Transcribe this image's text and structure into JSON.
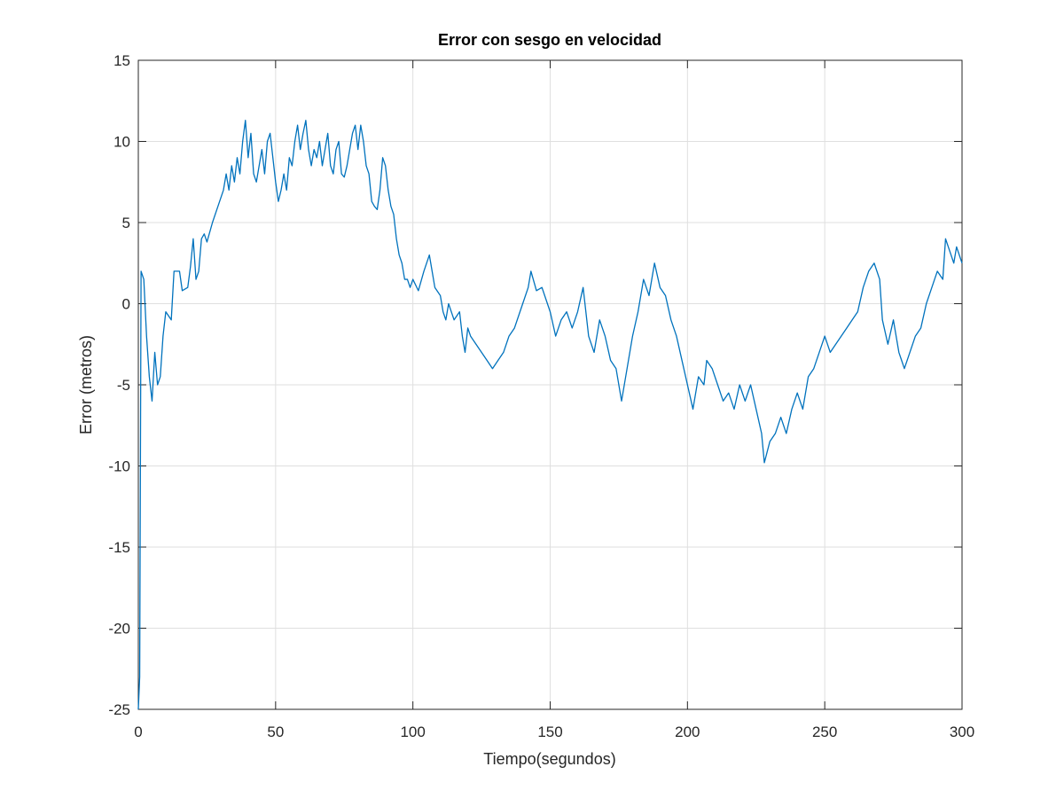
{
  "chart_data": {
    "type": "line",
    "title": "Error con sesgo en velocidad",
    "x_label": "Tiempo(segundos)",
    "y_label": "Error (metros)",
    "x": [
      0,
      0.5,
      1,
      2,
      3,
      4,
      5,
      6,
      7,
      8,
      9,
      10,
      12,
      13,
      15,
      16,
      18,
      19,
      20,
      21,
      22,
      23,
      24,
      25,
      27,
      29,
      31,
      32,
      33,
      34,
      35,
      36,
      37,
      38,
      39,
      40,
      41,
      42,
      43,
      44,
      45,
      46,
      47,
      48,
      49,
      50,
      51,
      52,
      53,
      54,
      55,
      56,
      57,
      58,
      59,
      60,
      61,
      62,
      63,
      64,
      65,
      66,
      67,
      68,
      69,
      70,
      71,
      72,
      73,
      74,
      75,
      76,
      77,
      78,
      79,
      80,
      81,
      82,
      83,
      84,
      85,
      86,
      87,
      88,
      89,
      90,
      91,
      92,
      93,
      94,
      95,
      96,
      97,
      98,
      99,
      100,
      102,
      104,
      106,
      107,
      108,
      110,
      111,
      112,
      113,
      115,
      117,
      118,
      119,
      120,
      121,
      123,
      125,
      127,
      129,
      131,
      133,
      135,
      137,
      140,
      142,
      143,
      145,
      147,
      149,
      150,
      152,
      154,
      156,
      158,
      160,
      162,
      164,
      166,
      168,
      170,
      172,
      174,
      176,
      178,
      180,
      182,
      184,
      186,
      188,
      190,
      192,
      194,
      196,
      198,
      200,
      202,
      204,
      206,
      207,
      209,
      211,
      213,
      215,
      217,
      219,
      221,
      223,
      225,
      227,
      228,
      230,
      232,
      234,
      236,
      238,
      240,
      242,
      244,
      246,
      248,
      250,
      252,
      254,
      256,
      258,
      260,
      262,
      264,
      266,
      268,
      270,
      271,
      273,
      275,
      277,
      279,
      281,
      283,
      285,
      287,
      289,
      291,
      293,
      294,
      296,
      297,
      298,
      300
    ],
    "series": [
      {
        "name": "Error",
        "color": "#0072bd",
        "values": [
          -25,
          -23,
          2,
          1.5,
          -2,
          -4.5,
          -6,
          -3,
          -5,
          -4.5,
          -2,
          -0.5,
          -1,
          2,
          2,
          0.8,
          1,
          2.3,
          4,
          1.5,
          2,
          4,
          4.3,
          3.8,
          5,
          6,
          7,
          8,
          7,
          8.5,
          7.5,
          9,
          8,
          10,
          11.3,
          9,
          10.5,
          8,
          7.5,
          8.5,
          9.5,
          8,
          10,
          10.5,
          9,
          7.5,
          6.3,
          7,
          8,
          7,
          9,
          8.5,
          10,
          11,
          9.5,
          10.5,
          11.3,
          9.5,
          8.5,
          9.5,
          9,
          10,
          8.5,
          9.5,
          10.5,
          8.5,
          8,
          9.5,
          10,
          8,
          7.8,
          8.5,
          9.5,
          10.5,
          11,
          9.5,
          11,
          10,
          8.5,
          8,
          6.3,
          6,
          5.8,
          7,
          9,
          8.5,
          7,
          6,
          5.5,
          4,
          3,
          2.5,
          1.5,
          1.5,
          1,
          1.5,
          0.8,
          2,
          3,
          2,
          1,
          0.5,
          -0.5,
          -1,
          0,
          -1,
          -0.5,
          -2,
          -3,
          -1.5,
          -2,
          -2.5,
          -3,
          -3.5,
          -4,
          -3.5,
          -3,
          -2,
          -1.5,
          0,
          1,
          2,
          0.8,
          1,
          0,
          -0.5,
          -2,
          -1,
          -0.5,
          -1.5,
          -0.5,
          1,
          -2,
          -3,
          -1,
          -2,
          -3.5,
          -4,
          -6,
          -4,
          -2,
          -0.5,
          1.5,
          0.5,
          2.5,
          1,
          0.5,
          -1,
          -2,
          -3.5,
          -5,
          -6.5,
          -4.5,
          -5,
          -3.5,
          -4,
          -5,
          -6,
          -5.5,
          -6.5,
          -5,
          -6,
          -5,
          -6.5,
          -8,
          -9.8,
          -8.5,
          -8,
          -7,
          -8,
          -6.5,
          -5.5,
          -6.5,
          -4.5,
          -4,
          -3,
          -2,
          -3,
          -2.5,
          -2,
          -1.5,
          -1,
          -0.5,
          1,
          2,
          2.5,
          1.5,
          -1,
          -2.5,
          -1,
          -3,
          -4,
          -3,
          -2,
          -1.5,
          0,
          1,
          2,
          1.5,
          4,
          3,
          2.5,
          3.5,
          2.5
        ]
      }
    ],
    "xlim": [
      0,
      300
    ],
    "xticks": [
      0,
      50,
      100,
      150,
      200,
      250,
      300
    ],
    "ylim": [
      -25,
      15
    ],
    "yticks": [
      -25,
      -20,
      -15,
      -10,
      -5,
      0,
      5,
      10,
      15
    ],
    "grid": true
  }
}
